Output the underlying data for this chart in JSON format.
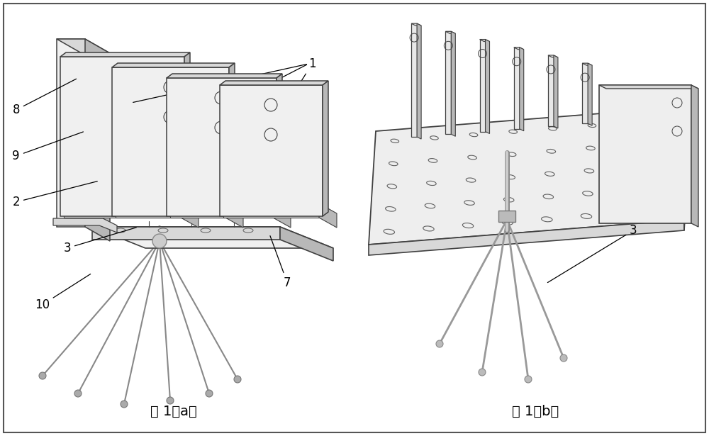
{
  "fig_width": 10.0,
  "fig_height": 6.15,
  "bg_color": "#ffffff",
  "ec": "#404040",
  "fl": "#f0f0f0",
  "fm": "#d8d8d8",
  "fd": "#b8b8b8",
  "lc": "#606060",
  "label_a": "图 1（a）",
  "label_b": "图 1（b）",
  "font_size_caption": 14,
  "font_size_label": 12
}
